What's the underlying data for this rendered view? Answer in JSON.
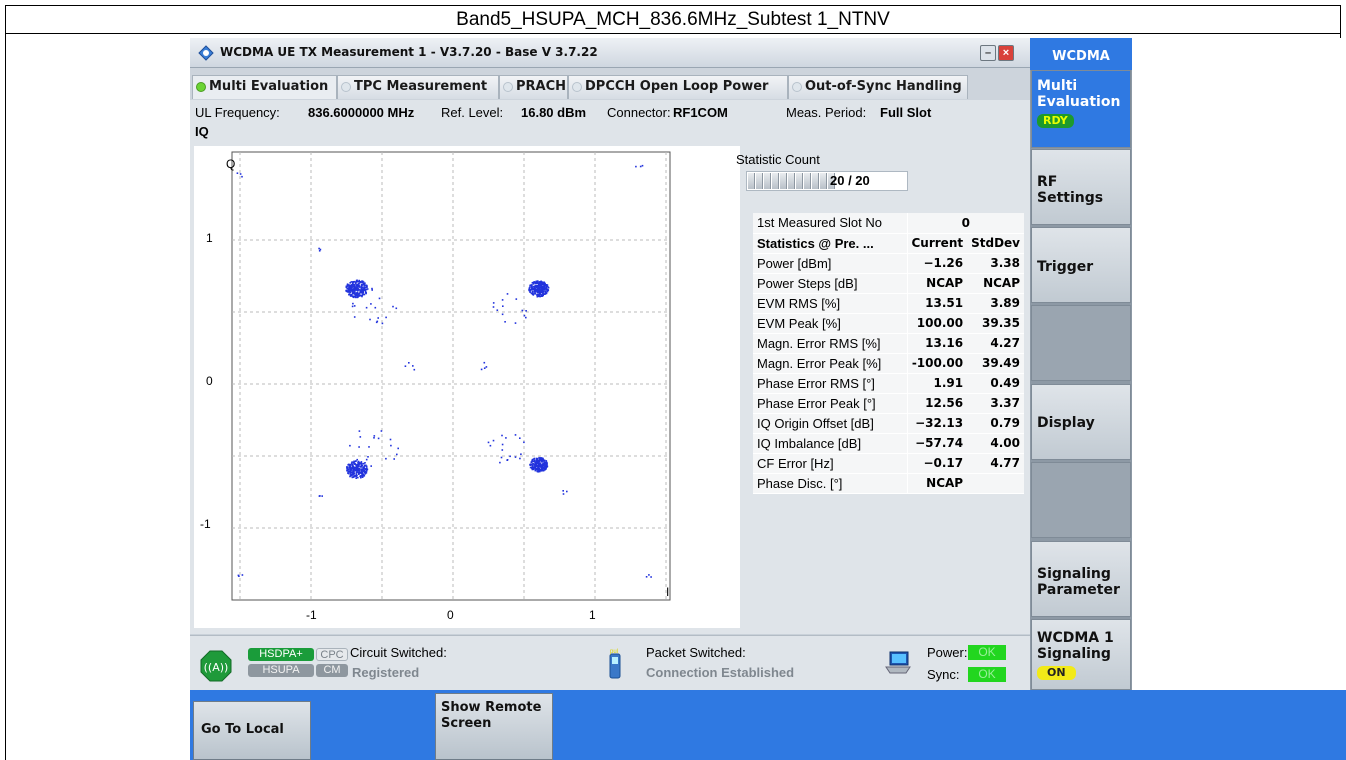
{
  "outer_title": "Band5_HSUPA_MCH_836.6MHz_Subtest 1_NTNV",
  "window": {
    "title": "WCDMA UE TX Measurement 1 - V3.7.20 - Base V 3.7.22",
    "minimize_glyph": "–",
    "close_glyph": "×"
  },
  "tabs": [
    {
      "label": "Multi Evaluation",
      "active": true
    },
    {
      "label": "TPC Measurement",
      "active": false
    },
    {
      "label": "PRACH",
      "active": false
    },
    {
      "label": "DPCCH Open Loop Power",
      "active": false
    },
    {
      "label": "Out-of-Sync Handling",
      "active": false
    }
  ],
  "info": {
    "ul_frequency_label": "UL Frequency:",
    "ul_frequency_value": "836.6000000 MHz",
    "ref_level_label": "Ref. Level:",
    "ref_level_value": "16.80 dBm",
    "connector_label": "Connector:",
    "connector_value": "RF1COM",
    "meas_period_label": "Meas. Period:",
    "meas_period_value": "Full Slot",
    "section_label": "IQ"
  },
  "iq_plot": {
    "q_axis_label": "Q",
    "i_axis_label": "I",
    "y_tick_labels": [
      "1",
      "0",
      "-1"
    ],
    "x_tick_labels": [
      "-1",
      "0",
      "1"
    ],
    "point_color": "#2233dd"
  },
  "statistic": {
    "label": "Statistic Count",
    "count_text": "20 / 20",
    "progress": 1.0
  },
  "stats_table": {
    "first_slot_label": "1st Measured Slot No",
    "first_slot_value": "0",
    "header": {
      "label": "Statistics @ Pre. ...",
      "col1": "Current",
      "col2": "StdDev"
    },
    "rows": [
      {
        "label": "Power [dBm]",
        "current": "−1.26",
        "stddev": "3.38"
      },
      {
        "label": "Power Steps [dB]",
        "current": "NCAP",
        "stddev": "NCAP"
      },
      {
        "label": "EVM RMS [%]",
        "current": "13.51",
        "stddev": "3.89"
      },
      {
        "label": "EVM Peak [%]",
        "current": "100.00",
        "stddev": "39.35"
      },
      {
        "label": "Magn. Error RMS [%]",
        "current": "13.16",
        "stddev": "4.27"
      },
      {
        "label": "Magn. Error Peak [%]",
        "current": "-100.00",
        "stddev": "39.49"
      },
      {
        "label": "Phase Error RMS [°]",
        "current": "1.91",
        "stddev": "0.49"
      },
      {
        "label": "Phase Error Peak [°]",
        "current": "12.56",
        "stddev": "3.37"
      },
      {
        "label": "IQ Origin Offset [dB]",
        "current": "−32.13",
        "stddev": "0.79"
      },
      {
        "label": "IQ Imbalance [dB]",
        "current": "−57.74",
        "stddev": "4.00"
      },
      {
        "label": "CF Error [Hz]",
        "current": "−0.17",
        "stddev": "4.77"
      },
      {
        "label": "Phase Disc. [°]",
        "current": "NCAP",
        "stddev": ""
      }
    ]
  },
  "status": {
    "hsdpa_label": "HSDPA+",
    "cpc_label": "CPC",
    "hsupa_label": "HSUPA",
    "cm_label": "CM",
    "circuit_label": "Circuit Switched:",
    "circuit_value": "Registered",
    "packet_label": "Packet Switched:",
    "packet_value": "Connection Established",
    "power_label": "Power:",
    "sync_label": "Sync:",
    "power_state": "OK",
    "sync_state": "OK"
  },
  "softkeys": {
    "header": "WCDMA",
    "multi_eval_line1": "Multi",
    "multi_eval_line2": "Evaluation",
    "multi_eval_badge": "RDY",
    "rf_line1": "RF",
    "rf_line2": "Settings",
    "trigger": "Trigger",
    "display": "Display",
    "signaling_line1": "Signaling",
    "signaling_line2": "Parameter",
    "wcdma1_line1": "WCDMA 1",
    "wcdma1_line2": "Signaling",
    "wcdma1_badge": "ON"
  },
  "bottom": {
    "go_to_local": "Go To Local",
    "show_remote_line1": "Show Remote",
    "show_remote_line2": "Screen"
  }
}
